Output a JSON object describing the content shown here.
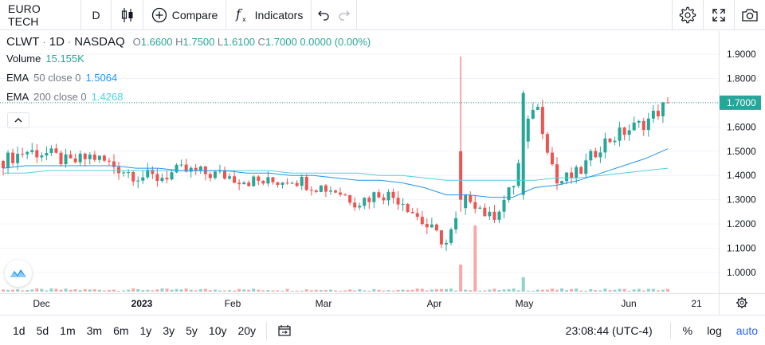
{
  "toolbar": {
    "symbol": "EURO TECH",
    "interval": "D",
    "compare_label": "Compare",
    "indicators_label": "Indicators",
    "icons": [
      "candlestick-icon",
      "plus-circle-icon",
      "fx-icon",
      "undo-icon",
      "redo-icon",
      "gear-icon",
      "fullscreen-icon",
      "camera-icon"
    ]
  },
  "legend": {
    "symbol": "CLWT",
    "interval": "1D",
    "exchange": "NASDAQ",
    "o_label": "O",
    "o_value": "1.6600",
    "h_label": "H",
    "h_value": "1.7500",
    "l_label": "L",
    "l_value": "1.6100",
    "c_label": "C",
    "c_value": "1.7000",
    "change": "0.0000 (0.00%)",
    "volume_label": "Volume",
    "volume_value": "15.155K",
    "ema50_name": "EMA",
    "ema50_params": "50 close 0",
    "ema50_value": "1.5064",
    "ema200_name": "EMA",
    "ema200_params": "200 close 0",
    "ema200_value": "1.4268"
  },
  "price_axis": {
    "ticks": [
      "1.9000",
      "1.8000",
      "1.7000",
      "1.6000",
      "1.5000",
      "1.4000",
      "1.3000",
      "1.2000",
      "1.1000",
      "1.0000"
    ],
    "current_price": "1.7000"
  },
  "time_axis": {
    "ticks": [
      "Dec",
      "2023",
      "Feb",
      "Mar",
      "Apr",
      "May",
      "Jun",
      "21"
    ]
  },
  "bottombar": {
    "ranges": [
      "1d",
      "5d",
      "1m",
      "3m",
      "6m",
      "1y",
      "3y",
      "5y",
      "10y",
      "20y"
    ],
    "time": "23:08:44 (UTC-4)",
    "percent_label": "%",
    "log_label": "log",
    "auto_label": "auto"
  },
  "colors": {
    "up": "#26a69a",
    "down": "#ef5350",
    "ema50": "#2196f3",
    "ema200": "#4dd0e1",
    "accent": "#2962ff"
  },
  "chart_data": {
    "type": "candlestick",
    "price_range": [
      0.95,
      1.95
    ],
    "x": [
      "2022-11-21",
      "2022-11-28",
      "2022-12-05",
      "2022-12-12",
      "2022-12-19",
      "2022-12-27",
      "2023-01-03",
      "2023-01-09",
      "2023-01-17",
      "2023-01-23",
      "2023-01-30",
      "2023-02-06",
      "2023-02-13",
      "2023-02-21",
      "2023-02-27",
      "2023-03-06",
      "2023-03-13",
      "2023-03-20",
      "2023-03-27",
      "2023-04-03",
      "2023-04-10",
      "2023-04-17",
      "2023-04-24",
      "2023-05-01",
      "2023-05-08",
      "2023-05-15",
      "2023-05-22",
      "2023-05-30",
      "2023-06-05",
      "2023-06-12",
      "2023-06-20"
    ],
    "close": [
      1.46,
      1.5,
      1.49,
      1.45,
      1.48,
      1.44,
      1.4,
      1.39,
      1.42,
      1.41,
      1.4,
      1.38,
      1.37,
      1.39,
      1.36,
      1.34,
      1.29,
      1.33,
      1.3,
      1.2,
      1.12,
      1.32,
      1.22,
      1.35,
      1.72,
      1.37,
      1.41,
      1.53,
      1.58,
      1.62,
      1.7
    ],
    "ema50": [
      1.43,
      1.44,
      1.44,
      1.44,
      1.44,
      1.44,
      1.43,
      1.43,
      1.42,
      1.42,
      1.42,
      1.41,
      1.41,
      1.4,
      1.4,
      1.39,
      1.38,
      1.38,
      1.37,
      1.35,
      1.32,
      1.32,
      1.31,
      1.31,
      1.35,
      1.36,
      1.38,
      1.41,
      1.44,
      1.47,
      1.51
    ],
    "ema200": [
      1.41,
      1.41,
      1.42,
      1.42,
      1.42,
      1.42,
      1.42,
      1.42,
      1.42,
      1.42,
      1.42,
      1.42,
      1.42,
      1.41,
      1.41,
      1.41,
      1.41,
      1.4,
      1.4,
      1.39,
      1.38,
      1.38,
      1.38,
      1.38,
      1.38,
      1.39,
      1.39,
      1.4,
      1.41,
      1.42,
      1.43
    ],
    "volume_note": "volume histogram at bottom"
  }
}
